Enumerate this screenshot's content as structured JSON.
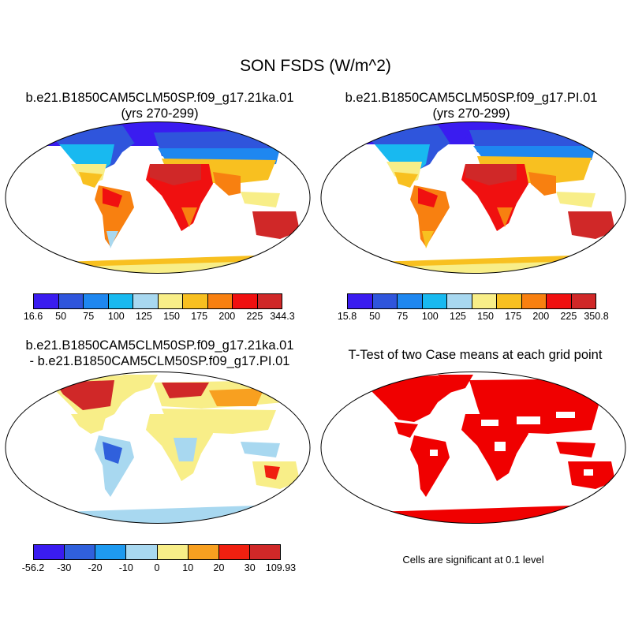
{
  "main_title": "SON FSDS (W/m^2)",
  "panels": {
    "top_left": {
      "title_line1": "b.e21.B1850CAM5CLM50SP.f09_g17.21ka.01",
      "title_line2": "(yrs 270-299)"
    },
    "top_right": {
      "title_line1": "b.e21.B1850CAM5CLM50SP.f09_g17.PI.01",
      "title_line2": "(yrs 270-299)"
    },
    "bottom_left": {
      "title_line1": "b.e21.B1850CAM5CLM50SP.f09_g17.21ka.01",
      "title_line2": "- b.e21.B1850CAM5CLM50SP.f09_g17.PI.01"
    },
    "bottom_right": {
      "title_line1": "T-Test of two Case means at each grid point",
      "note": "Cells are significant at 0.1 level"
    }
  },
  "colorbars": {
    "top_left": {
      "colors": [
        "#3a1cf0",
        "#2f55dc",
        "#1e87f0",
        "#18b9f0",
        "#a8d8f0",
        "#f8ee88",
        "#f8c020",
        "#f88010",
        "#f01010",
        "#d02828"
      ],
      "labels": [
        "16.6",
        "50",
        "75",
        "100",
        "125",
        "150",
        "175",
        "200",
        "225",
        "344.3"
      ]
    },
    "top_right": {
      "colors": [
        "#3a1cf0",
        "#2f55dc",
        "#1e87f0",
        "#18b9f0",
        "#a8d8f0",
        "#f8ee88",
        "#f8c020",
        "#f88010",
        "#f01010",
        "#d02828"
      ],
      "labels": [
        "15.8",
        "50",
        "75",
        "100",
        "125",
        "150",
        "175",
        "200",
        "225",
        "350.8"
      ]
    },
    "bottom_left": {
      "colors": [
        "#3a1cf0",
        "#3060dc",
        "#1e9af0",
        "#a8d8f0",
        "#f8ee88",
        "#f8a020",
        "#f02010",
        "#d02828"
      ],
      "labels": [
        "-56.2",
        "-30",
        "-20",
        "-10",
        "0",
        "10",
        "20",
        "30",
        "109.93"
      ]
    }
  },
  "map_colors": {
    "ocean": "#ffffff",
    "significant": "#f00000",
    "coast": "#000000"
  }
}
